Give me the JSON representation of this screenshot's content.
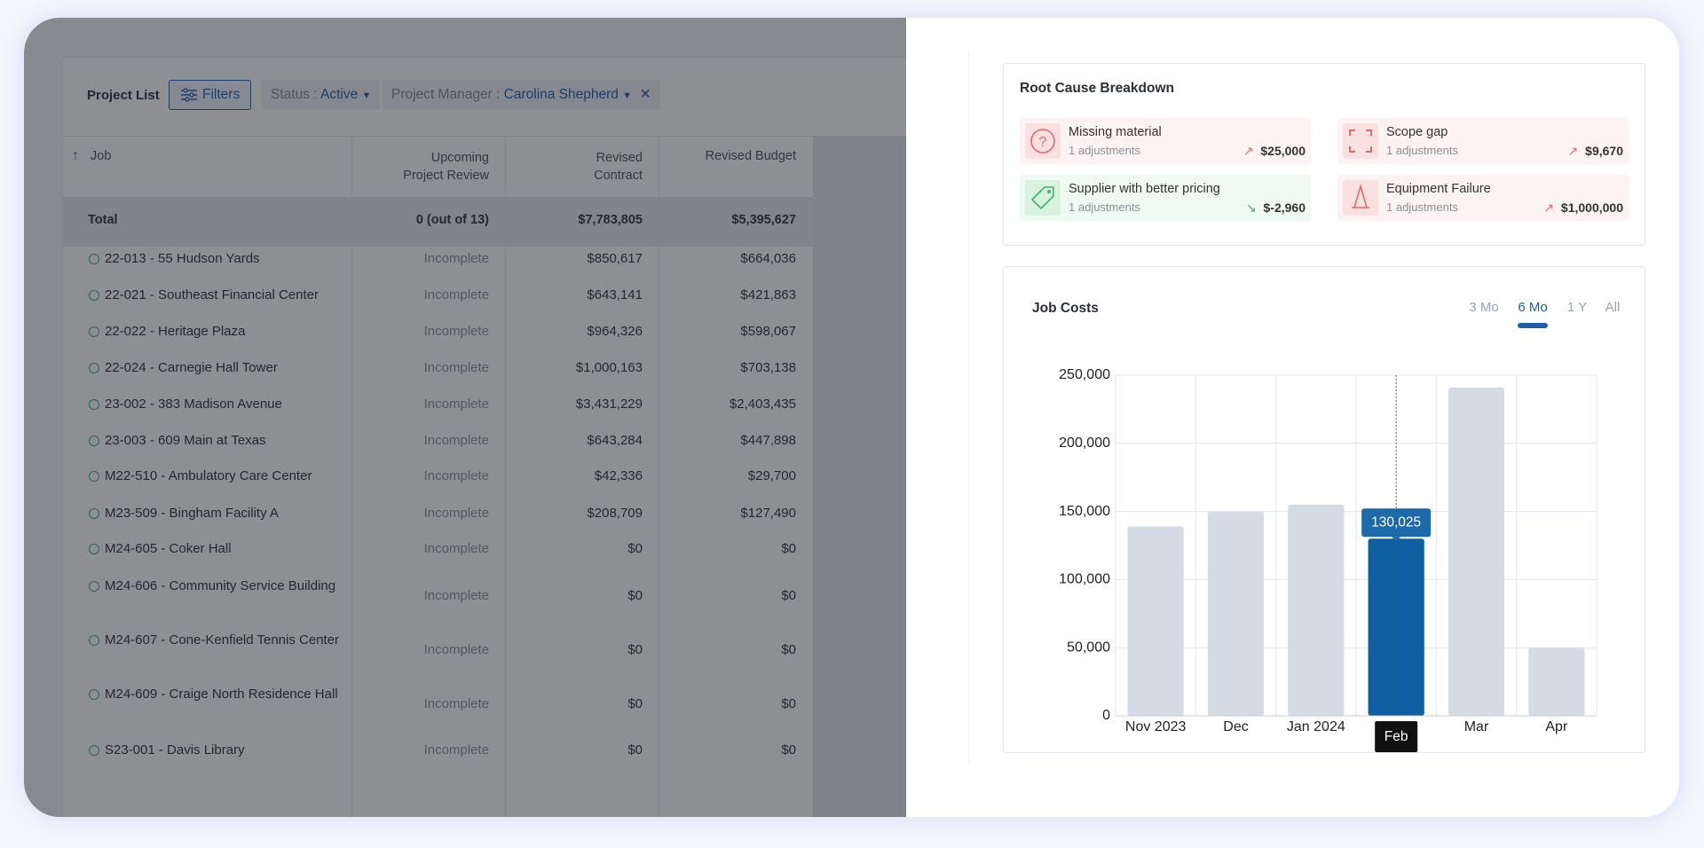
{
  "toolbar": {
    "title": "Project List",
    "filters_button": "Filters",
    "filters": [
      {
        "label": "Status :",
        "value": "Active"
      },
      {
        "label": "Project Manager :",
        "value": "Carolina Shepherd"
      }
    ]
  },
  "table": {
    "columns": [
      "Job",
      "Upcoming Project Review",
      "Revised Contract",
      "Revised Budget"
    ],
    "total": [
      "Total",
      "0 (out of 13)",
      "$7,783,805",
      "$5,395,627"
    ],
    "rows": [
      [
        "22-013 - 55 Hudson Yards",
        "Incomplete",
        "$850,617",
        "$664,036"
      ],
      [
        "22-021 - Southeast Financial Center",
        "Incomplete",
        "$643,141",
        "$421,863"
      ],
      [
        "22-022 - Heritage Plaza",
        "Incomplete",
        "$964,326",
        "$598,067"
      ],
      [
        "22-024 - Carnegie Hall Tower",
        "Incomplete",
        "$1,000,163",
        "$703,138"
      ],
      [
        "23-002 - 383 Madison Avenue",
        "Incomplete",
        "$3,431,229",
        "$2,403,435"
      ],
      [
        "23-003 - 609 Main at Texas",
        "Incomplete",
        "$643,284",
        "$447,898"
      ],
      [
        "M22-510 - Ambulatory Care Center",
        "Incomplete",
        "$42,336",
        "$29,700"
      ],
      [
        "M23-509 - Bingham Facility A",
        "Incomplete",
        "$208,709",
        "$127,490"
      ],
      [
        "M24-605 - Coker Hall",
        "Incomplete",
        "$0",
        "$0"
      ],
      [
        "M24-606 - Community Service Building",
        "Incomplete",
        "$0",
        "$0"
      ],
      [
        "M24-607 - Cone-Kenfield Tennis Center",
        "Incomplete",
        "$0",
        "$0"
      ],
      [
        "M24-609 - Craige North Residence Hall",
        "Incomplete",
        "$0",
        "$0"
      ],
      [
        "S23-001 - Davis Library",
        "Incomplete",
        "$0",
        "$0"
      ]
    ]
  },
  "root_cause": {
    "title": "Root Cause Breakdown",
    "items": [
      {
        "name": "Missing material",
        "detail": "1 adjustments",
        "amount": "$25,000"
      },
      {
        "name": "Scope gap",
        "detail": "1 adjustments",
        "amount": "$9,670"
      },
      {
        "name": "Supplier with better pricing",
        "detail": "1 adjustments",
        "amount": "$-2,960"
      },
      {
        "name": "Equipment Failure",
        "detail": "1 adjustments",
        "amount": "$1,000,000"
      }
    ]
  },
  "chart_data": {
    "type": "bar",
    "title": "Job Costs",
    "tabs": [
      "3 Mo",
      "6 Mo",
      "1 Y",
      "All"
    ],
    "active_tab": 1,
    "categories": [
      "Nov 2023",
      "Dec",
      "Jan 2024",
      "Feb",
      "Mar",
      "Apr"
    ],
    "values": [
      139000,
      150000,
      155000,
      130025,
      241000,
      50000
    ],
    "value_labels": [
      null,
      null,
      null,
      "130,025",
      null,
      null
    ],
    "colors": [
      "#d5dbe5",
      "#d5dbe5",
      "#d5dbe5",
      "#0f5fa3",
      "#d5dbe5",
      "#d5dbe5"
    ],
    "ylim": [
      0,
      250000
    ],
    "yticks": [
      0,
      {
        "value": 50000,
        "label": "50,000"
      },
      {
        "value": 100000,
        "label": "100,000"
      },
      {
        "value": 150000,
        "label": "150,000"
      },
      {
        "value": 200000,
        "label": "200,000"
      },
      {
        "value": 250000,
        "label": "250,000"
      }
    ],
    "grid": true
  }
}
